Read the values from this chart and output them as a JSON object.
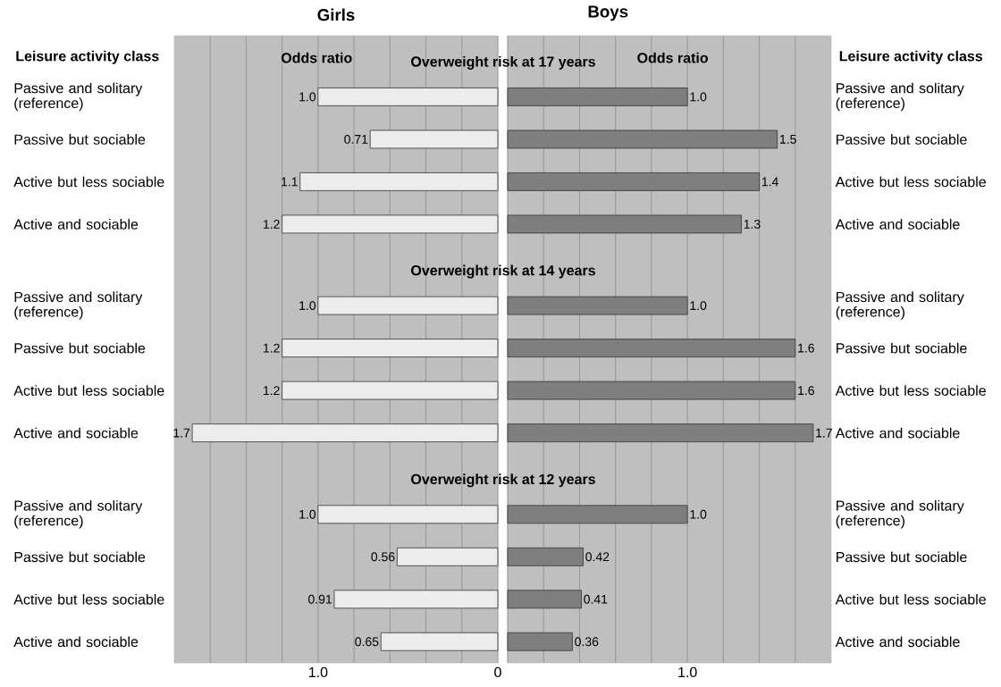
{
  "chart_data": [
    {
      "type": "bar",
      "orientation": "horizontal",
      "title": "Girls",
      "xlabel": "Odds ratio",
      "ylabel": "Leisure activity class",
      "categories": [
        "Passive and solitary (reference)",
        "Passive but sociable",
        "Active but less sociable",
        "Active and sociable",
        "Passive and solitary (reference)",
        "Passive but sociable",
        "Active but less sociable",
        "Active and sociable",
        "Passive and solitary (reference)",
        "Passive but sociable",
        "Active but less sociable",
        "Active and sociable"
      ],
      "values": [
        1.0,
        0.71,
        1.1,
        1.2,
        1.0,
        1.2,
        1.2,
        1.7,
        1.0,
        0.56,
        0.91,
        0.65
      ],
      "value_labels": [
        "1.0",
        "0.71",
        "1.1",
        "1.2",
        "1.0",
        "1.2",
        "1.2",
        "1.7",
        "1.0",
        "0.56",
        "0.91",
        "0.65"
      ],
      "color": "#ececec",
      "xlim": [
        1.8,
        0
      ],
      "xticks": [
        {
          "value": 0,
          "label": "0"
        },
        {
          "value": 0.2,
          "label": null
        },
        {
          "value": 0.4,
          "label": null
        },
        {
          "value": 0.6,
          "label": null
        },
        {
          "value": 0.8,
          "label": null
        },
        {
          "value": 1.0,
          "label": "1.0"
        },
        {
          "value": 1.2,
          "label": null
        },
        {
          "value": 1.4,
          "label": null
        },
        {
          "value": 1.6,
          "label": null
        }
      ],
      "grid": "x",
      "annotations": [
        "Overweight risk at 17 years",
        "Overweight risk at 14 years",
        "Overweight risk at 12 years"
      ]
    },
    {
      "type": "bar",
      "orientation": "horizontal",
      "title": "Boys",
      "xlabel": "Odds ratio",
      "ylabel": "Leisure activity class",
      "categories": [
        "Passive and solitary (reference)",
        "Passive but sociable",
        "Active but less sociable",
        "Active and sociable",
        "Passive and solitary (reference)",
        "Passive but sociable",
        "Active but less sociable",
        "Active and sociable",
        "Passive and solitary (reference)",
        "Passive but sociable",
        "Active but less sociable",
        "Active and sociable"
      ],
      "values": [
        1.0,
        1.5,
        1.4,
        1.3,
        1.0,
        1.6,
        1.6,
        1.7,
        1.0,
        0.42,
        0.41,
        0.36
      ],
      "value_labels": [
        "1.0",
        "1.5",
        "1.4",
        "1.3",
        "1.0",
        "1.6",
        "1.6",
        "1.7",
        "1.0",
        "0.42",
        "0.41",
        "0.36"
      ],
      "color": "#7f7f7f",
      "xlim": [
        0,
        1.8
      ],
      "xticks": [
        {
          "value": 0,
          "label": null
        },
        {
          "value": 0.2,
          "label": null
        },
        {
          "value": 0.4,
          "label": null
        },
        {
          "value": 0.6,
          "label": null
        },
        {
          "value": 0.8,
          "label": null
        },
        {
          "value": 1.0,
          "label": "1.0"
        },
        {
          "value": 1.2,
          "label": null
        },
        {
          "value": 1.4,
          "label": null
        },
        {
          "value": 1.6,
          "label": null
        }
      ],
      "grid": "x"
    }
  ]
}
